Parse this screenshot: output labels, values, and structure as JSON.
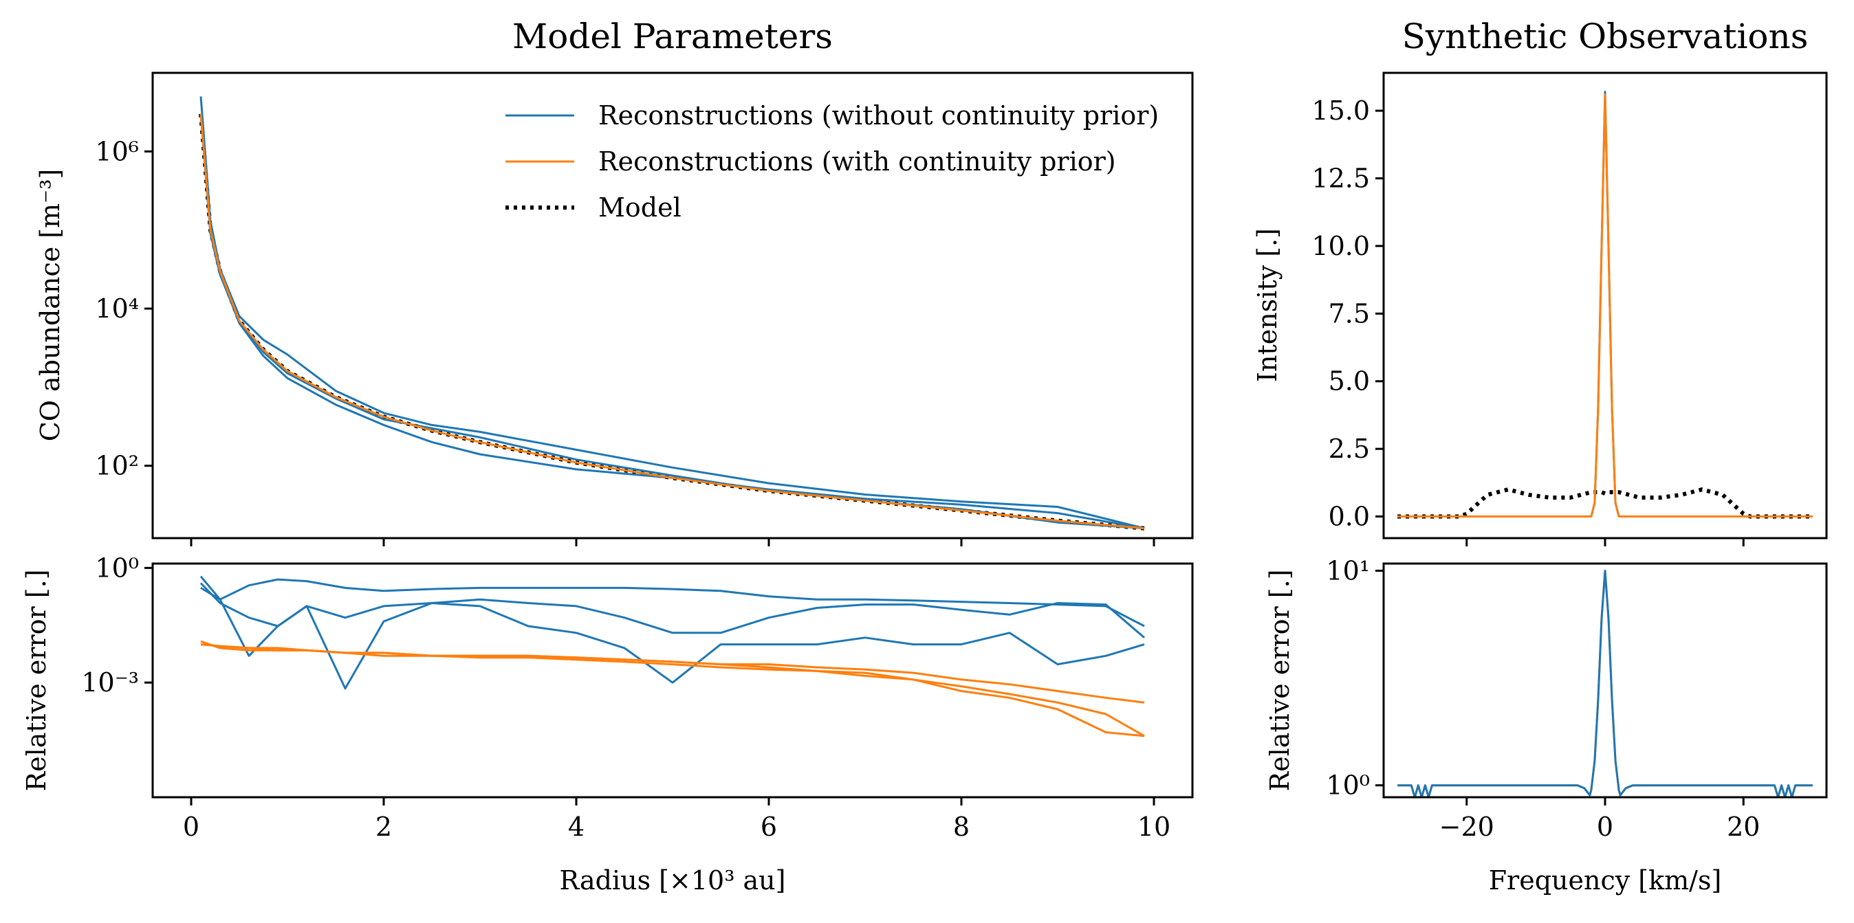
{
  "chart_data": [
    {
      "id": "co_abundance",
      "type": "line",
      "title": "Model Parameters",
      "xlabel": "",
      "ylabel": "CO abundance [m⁻³]",
      "yscale": "log",
      "xlim": [
        -0.4,
        10.4
      ],
      "ylim": [
        12,
        10000000
      ],
      "xticks": [
        0,
        2,
        4,
        6,
        8,
        10
      ],
      "xtick_labels_shown": false,
      "yticks": [
        100,
        10000,
        1000000
      ],
      "ytick_labels": [
        "10²",
        "10⁴",
        "10⁶"
      ],
      "legend": {
        "position": "top-right",
        "entries": [
          {
            "label": "Reconstructions (without continuity prior)",
            "color": "#1f77b4",
            "style": "solid"
          },
          {
            "label": "Reconstructions (with continuity prior)",
            "color": "#ff7f0e",
            "style": "solid"
          },
          {
            "label": "Model",
            "color": "#000000",
            "style": "dotted"
          }
        ]
      },
      "x": [
        0.1,
        0.2,
        0.3,
        0.5,
        0.75,
        1.0,
        1.5,
        2.0,
        2.5,
        3.0,
        4.0,
        5.0,
        6.0,
        7.0,
        8.0,
        9.0,
        9.9
      ],
      "series": [
        {
          "name": "Model",
          "color": "#000000",
          "style": "dotted",
          "values": [
            3000000,
            100000,
            30000,
            7000,
            3000,
            1600,
            750,
            420,
            280,
            200,
            110,
            70,
            48,
            36,
            27,
            20,
            16
          ]
        },
        {
          "name": "Reconstructions (without continuity prior)",
          "color": "#1f77b4",
          "values": [
            5000000,
            130000,
            32000,
            8000,
            4000,
            2600,
            900,
            470,
            330,
            270,
            160,
            95,
            60,
            43,
            35,
            30,
            16
          ]
        },
        {
          "name": "Reconstructions (without continuity prior)",
          "color": "#1f77b4",
          "values": [
            3000000,
            100000,
            28000,
            6500,
            2500,
            1300,
            600,
            330,
            200,
            140,
            90,
            70,
            50,
            38,
            32,
            25,
            16
          ]
        },
        {
          "name": "Reconstructions (without continuity prior)",
          "color": "#1f77b4",
          "values": [
            3000000,
            90000,
            27000,
            6800,
            2800,
            1500,
            720,
            390,
            300,
            230,
            120,
            75,
            48,
            36,
            28,
            19,
            16
          ]
        },
        {
          "name": "Reconstructions (with continuity prior)",
          "color": "#ff7f0e",
          "values": [
            3000000,
            100000,
            30000,
            7000,
            3000,
            1600,
            750,
            420,
            280,
            200,
            110,
            70,
            48,
            36,
            27,
            20,
            16
          ]
        }
      ]
    },
    {
      "id": "param_relative_error",
      "type": "line",
      "title": "",
      "xlabel": "Radius [×10³ au]",
      "ylabel": "Relative error [.]",
      "yscale": "log",
      "xlim": [
        -0.4,
        10.4
      ],
      "ylim": [
        1e-06,
        1.3
      ],
      "xticks": [
        0,
        2,
        4,
        6,
        8,
        10
      ],
      "xtick_labels": [
        "0",
        "2",
        "4",
        "6",
        "8",
        "10"
      ],
      "yticks": [
        0.001,
        1
      ],
      "ytick_labels": [
        "10⁻³",
        "10⁰"
      ],
      "x": [
        0.1,
        0.3,
        0.6,
        0.9,
        1.2,
        1.6,
        2.0,
        2.5,
        3.0,
        3.5,
        4.0,
        4.5,
        5.0,
        5.5,
        6.0,
        6.5,
        7.0,
        7.5,
        8.0,
        8.5,
        9.0,
        9.5,
        9.9
      ],
      "series": [
        {
          "name": "Reconstructions (without continuity prior)",
          "color": "#1f77b4",
          "values": [
            0.6,
            0.15,
            0.35,
            0.5,
            0.45,
            0.3,
            0.25,
            0.28,
            0.3,
            0.3,
            0.3,
            0.3,
            0.28,
            0.25,
            0.18,
            0.15,
            0.15,
            0.14,
            0.13,
            0.12,
            0.11,
            0.1,
            0.03
          ]
        },
        {
          "name": "Reconstructions (without continuity prior)",
          "color": "#1f77b4",
          "values": [
            0.4,
            0.12,
            0.05,
            0.03,
            0.1,
            0.0007,
            0.04,
            0.12,
            0.15,
            0.12,
            0.1,
            0.05,
            0.02,
            0.02,
            0.05,
            0.09,
            0.11,
            0.11,
            0.08,
            0.06,
            0.12,
            0.11,
            0.015
          ]
        },
        {
          "name": "Reconstructions (without continuity prior)",
          "color": "#1f77b4",
          "values": [
            0.3,
            0.15,
            0.005,
            0.03,
            0.1,
            0.05,
            0.1,
            0.12,
            0.1,
            0.03,
            0.02,
            0.008,
            0.001,
            0.01,
            0.01,
            0.01,
            0.015,
            0.01,
            0.01,
            0.02,
            0.003,
            0.005,
            0.01
          ]
        },
        {
          "name": "Reconstructions (with continuity prior)",
          "color": "#ff7f0e",
          "values": [
            0.01,
            0.009,
            0.008,
            0.008,
            0.007,
            0.006,
            0.006,
            0.005,
            0.005,
            0.005,
            0.0045,
            0.004,
            0.0035,
            0.003,
            0.003,
            0.0025,
            0.0022,
            0.0018,
            0.0012,
            0.0009,
            0.0006,
            0.0004,
            0.0003
          ]
        },
        {
          "name": "Reconstructions (with continuity prior)",
          "color": "#ff7f0e",
          "values": [
            0.012,
            0.008,
            0.007,
            0.007,
            0.007,
            0.006,
            0.005,
            0.005,
            0.0045,
            0.0045,
            0.004,
            0.0035,
            0.003,
            0.0025,
            0.0022,
            0.002,
            0.0015,
            0.0012,
            0.0006,
            0.0004,
            0.0002,
            5e-05,
            4e-05
          ]
        },
        {
          "name": "Reconstructions (with continuity prior)",
          "color": "#ff7f0e",
          "values": [
            0.01,
            0.009,
            0.008,
            0.007,
            0.007,
            0.006,
            0.006,
            0.005,
            0.005,
            0.005,
            0.0045,
            0.004,
            0.0035,
            0.003,
            0.0025,
            0.002,
            0.0018,
            0.0012,
            0.0008,
            0.0005,
            0.0003,
            0.00015,
            4e-05
          ]
        }
      ]
    },
    {
      "id": "intensity",
      "type": "line",
      "title": "Synthetic Observations",
      "xlabel": "",
      "ylabel": "Intensity [.]",
      "xlim": [
        -32,
        32
      ],
      "ylim": [
        -0.8,
        16.4
      ],
      "xticks": [
        -20,
        0,
        20
      ],
      "xtick_labels_shown": false,
      "yticks": [
        0.0,
        2.5,
        5.0,
        7.5,
        10.0,
        12.5,
        15.0
      ],
      "ytick_labels": [
        "0.0",
        "2.5",
        "5.0",
        "7.5",
        "10.0",
        "12.5",
        "15.0"
      ],
      "x": [
        -30,
        -25,
        -21,
        -20,
        -17,
        -14,
        -11,
        -8,
        -5,
        -2,
        -1.5,
        -1,
        -0.5,
        0,
        0.5,
        1,
        1.5,
        2,
        5,
        8,
        11,
        14,
        17,
        20,
        21,
        25,
        30
      ],
      "series": [
        {
          "name": "Model",
          "color": "#000000",
          "style": "dotted",
          "values": [
            0,
            0,
            0,
            0.1,
            0.8,
            1.0,
            0.8,
            0.7,
            0.7,
            0.9,
            0.9,
            0.9,
            0.9,
            0.85,
            0.9,
            0.9,
            0.9,
            0.9,
            0.7,
            0.7,
            0.8,
            1.0,
            0.8,
            0.1,
            0,
            0,
            0
          ]
        },
        {
          "name": "Reconstructions (without continuity prior)",
          "color": "#1f77b4",
          "values": [
            0,
            0,
            0,
            0,
            0,
            0,
            0,
            0,
            0,
            0,
            0.5,
            4.0,
            10.0,
            15.7,
            10.0,
            4.0,
            0.5,
            0,
            0,
            0,
            0,
            0,
            0,
            0,
            0,
            0,
            0
          ]
        },
        {
          "name": "Reconstructions (with continuity prior)",
          "color": "#ff7f0e",
          "values": [
            0,
            0,
            0,
            0,
            0,
            0,
            0,
            0,
            0,
            0,
            0.5,
            4.0,
            10.0,
            15.6,
            10.0,
            4.0,
            0.5,
            0,
            0,
            0,
            0,
            0,
            0,
            0,
            0,
            0,
            0
          ]
        }
      ]
    },
    {
      "id": "obs_relative_error",
      "type": "line",
      "title": "",
      "xlabel": "Frequency [km/s]",
      "ylabel": "Relative error [.]",
      "yscale": "log",
      "xlim": [
        -32,
        32
      ],
      "ylim": [
        0.88,
        10.8
      ],
      "xticks": [
        -20,
        0,
        20
      ],
      "xtick_labels": [
        "−20",
        "0",
        "20"
      ],
      "yticks": [
        1,
        10
      ],
      "ytick_labels": [
        "10⁰",
        "10¹"
      ],
      "x": [
        -30,
        -28,
        -27.5,
        -27,
        -26.5,
        -26,
        -25.5,
        -25,
        -20,
        -10,
        -4,
        -3,
        -2.2,
        -2,
        -1.5,
        -1,
        -0.5,
        0,
        0.5,
        1,
        1.5,
        2,
        2.2,
        3,
        4,
        10,
        20,
        24.5,
        25,
        25.5,
        26,
        26.5,
        27,
        27.5,
        28,
        30
      ],
      "series": [
        {
          "name": "Reconstructions (with continuity prior)",
          "color": "#ff7f0e",
          "values": [
            1.0,
            1.0,
            0.88,
            1.0,
            0.88,
            1.0,
            0.88,
            1.0,
            1.0,
            1.0,
            1.0,
            0.97,
            0.9,
            0.95,
            1.3,
            2.5,
            6.0,
            10.0,
            6.0,
            2.5,
            1.3,
            0.95,
            0.9,
            0.97,
            1.0,
            1.0,
            1.0,
            1.0,
            0.88,
            1.0,
            0.88,
            1.0,
            0.88,
            1.0,
            1.0,
            1.0
          ]
        },
        {
          "name": "Reconstructions (without continuity prior)",
          "color": "#1f77b4",
          "values": [
            1.0,
            1.0,
            0.88,
            1.0,
            0.88,
            1.0,
            0.88,
            1.0,
            1.0,
            1.0,
            1.0,
            0.97,
            0.9,
            0.95,
            1.3,
            2.5,
            6.0,
            10.0,
            6.0,
            2.5,
            1.3,
            0.95,
            0.9,
            0.97,
            1.0,
            1.0,
            1.0,
            1.0,
            0.88,
            1.0,
            0.88,
            1.0,
            0.88,
            1.0,
            1.0,
            1.0
          ]
        }
      ]
    }
  ]
}
